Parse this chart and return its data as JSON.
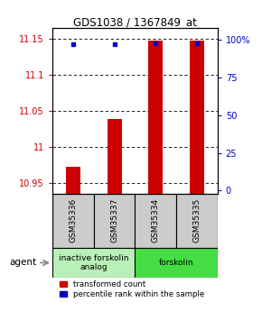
{
  "title": "GDS1038 / 1367849_at",
  "samples": [
    "GSM35336",
    "GSM35337",
    "GSM35334",
    "GSM35335"
  ],
  "red_values": [
    10.972,
    11.038,
    11.148,
    11.148
  ],
  "blue_values": [
    97,
    97,
    98,
    98
  ],
  "ylim_left": [
    10.935,
    11.165
  ],
  "yticks_left": [
    10.95,
    11.0,
    11.05,
    11.1,
    11.15
  ],
  "ytick_labels_left": [
    "10.95",
    "11",
    "11.05",
    "11.1",
    "11.15"
  ],
  "ylim_right": [
    -2,
    108
  ],
  "yticks_right": [
    0,
    25,
    50,
    75,
    100
  ],
  "ytick_labels_right": [
    "0",
    "25",
    "50",
    "75",
    "100%"
  ],
  "bar_width": 0.35,
  "red_color": "#cc0000",
  "blue_color": "#0000cc",
  "groups": [
    {
      "label": "inactive forskolin\nanalog",
      "color": "#b8f0b8",
      "span": [
        0,
        1
      ]
    },
    {
      "label": "forskolin",
      "color": "#44dd44",
      "span": [
        2,
        3
      ]
    }
  ],
  "legend_red": "transformed count",
  "legend_blue": "percentile rank within the sample",
  "agent_label": "agent",
  "background_color": "#ffffff",
  "sample_box_color": "#cccccc"
}
